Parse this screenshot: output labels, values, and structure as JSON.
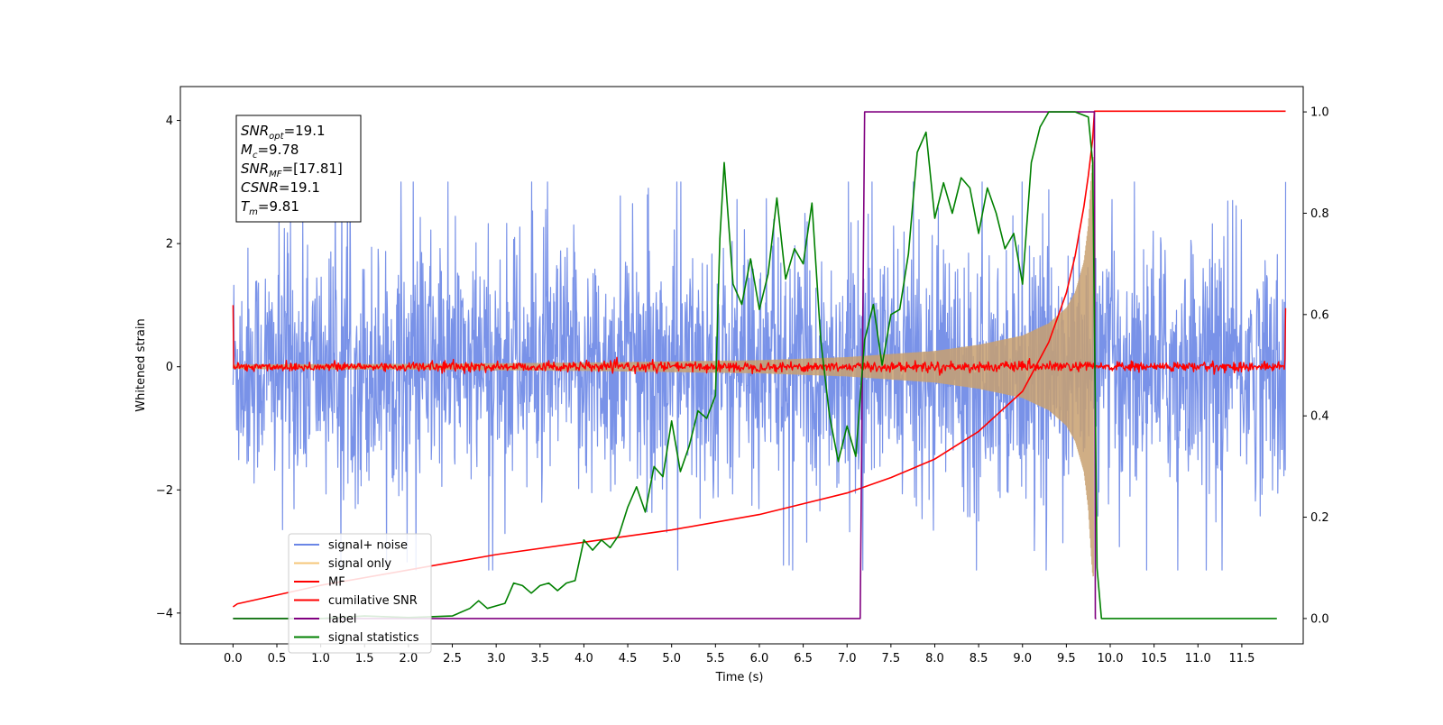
{
  "chart_data": {
    "type": "line",
    "xlabel": "Time (s)",
    "ylabel": "Whitened strain",
    "xlim": [
      -0.6,
      12.2
    ],
    "ylim": [
      -4.5,
      4.55
    ],
    "y2lim": [
      -0.05,
      1.05
    ],
    "x_ticks": [
      "0.0",
      "0.5",
      "1.0",
      "1.5",
      "2.0",
      "2.5",
      "3.0",
      "3.5",
      "4.0",
      "4.5",
      "5.0",
      "5.5",
      "6.0",
      "6.5",
      "7.0",
      "7.5",
      "8.0",
      "8.5",
      "9.0",
      "9.5",
      "10.0",
      "10.5",
      "11.0",
      "11.5"
    ],
    "y_ticks": [
      "4",
      "2",
      "0",
      "−2",
      "−4"
    ],
    "y2_ticks": [
      "1.0",
      "0.8",
      "0.6",
      "0.4",
      "0.2",
      "0.0"
    ],
    "annotation": {
      "snr_opt": {
        "sym": "SNR",
        "sub": "opt",
        "val": "=19.1"
      },
      "mc": {
        "sym": "M",
        "sub": "c",
        "val": "=9.78"
      },
      "snr_mf": {
        "sym": "SNR",
        "sub": "MF",
        "val": "=[17.81]"
      },
      "csnr": {
        "sym": "CSNR",
        "val": "=19.1"
      },
      "tm": {
        "sym": "T",
        "sub": "m",
        "val": "=9.81"
      }
    },
    "legend_position": "lower-left",
    "legend": [
      {
        "label": "signal+ noise",
        "color": "#6a86e6"
      },
      {
        "label": "signal only",
        "color": "#f5c77a"
      },
      {
        "label": "MF",
        "color": "#ff0000"
      },
      {
        "label": "cumilative SNR",
        "color": "#ff0000"
      },
      {
        "label": "label",
        "color": "#800080"
      },
      {
        "label": "signal statistics",
        "color": "#008000"
      }
    ],
    "series": [
      {
        "name": "signal+ noise",
        "axis": "left",
        "color": "#6a86e6",
        "pattern": "noise",
        "x_range": [
          0,
          12.0
        ],
        "amplitude_envelope": 3.0
      },
      {
        "name": "signal only",
        "axis": "left",
        "color": "#c8a070",
        "pattern": "chirp",
        "x_range": [
          0,
          9.81
        ],
        "envelope": [
          [
            0,
            0.03
          ],
          [
            2,
            0.04
          ],
          [
            4,
            0.06
          ],
          [
            6,
            0.1
          ],
          [
            7,
            0.15
          ],
          [
            8,
            0.25
          ],
          [
            8.5,
            0.35
          ],
          [
            9,
            0.5
          ],
          [
            9.3,
            0.7
          ],
          [
            9.5,
            0.95
          ],
          [
            9.6,
            1.2
          ],
          [
            9.7,
            1.7
          ],
          [
            9.75,
            2.3
          ],
          [
            9.78,
            3.0
          ],
          [
            9.8,
            3.4
          ]
        ]
      },
      {
        "name": "MF",
        "axis": "left",
        "color": "#ff0000",
        "pattern": "flat-noise",
        "x_range": [
          0,
          12.0
        ],
        "level": 0.0,
        "spikes": [
          [
            0.0,
            1.0
          ],
          [
            12.0,
            0.95
          ]
        ]
      },
      {
        "name": "cumilative SNR",
        "axis": "left",
        "color": "#ff0000",
        "points": [
          [
            0,
            -3.9
          ],
          [
            0.05,
            -3.85
          ],
          [
            1,
            -3.55
          ],
          [
            2,
            -3.3
          ],
          [
            3,
            -3.05
          ],
          [
            4,
            -2.85
          ],
          [
            5,
            -2.65
          ],
          [
            6,
            -2.4
          ],
          [
            7,
            -2.05
          ],
          [
            7.5,
            -1.8
          ],
          [
            8,
            -1.5
          ],
          [
            8.5,
            -1.05
          ],
          [
            9,
            -0.4
          ],
          [
            9.3,
            0.4
          ],
          [
            9.5,
            1.2
          ],
          [
            9.6,
            1.8
          ],
          [
            9.7,
            2.6
          ],
          [
            9.75,
            3.1
          ],
          [
            9.8,
            3.7
          ],
          [
            9.82,
            4.15
          ],
          [
            12.0,
            4.15
          ]
        ]
      },
      {
        "name": "label",
        "axis": "right",
        "color": "#800080",
        "points": [
          [
            0,
            0
          ],
          [
            7.15,
            0
          ],
          [
            7.2,
            1
          ],
          [
            9.82,
            1
          ],
          [
            9.83,
            0
          ],
          [
            9.84,
            0
          ]
        ]
      },
      {
        "name": "signal statistics",
        "axis": "right",
        "color": "#008000",
        "points": [
          [
            0,
            0
          ],
          [
            1.0,
            0
          ],
          [
            1.5,
            0.005
          ],
          [
            2,
            0.002
          ],
          [
            2.5,
            0.005
          ],
          [
            2.7,
            0.02
          ],
          [
            2.8,
            0.035
          ],
          [
            2.9,
            0.02
          ],
          [
            3.0,
            0.025
          ],
          [
            3.1,
            0.03
          ],
          [
            3.2,
            0.07
          ],
          [
            3.3,
            0.065
          ],
          [
            3.4,
            0.05
          ],
          [
            3.5,
            0.065
          ],
          [
            3.6,
            0.07
          ],
          [
            3.7,
            0.055
          ],
          [
            3.8,
            0.07
          ],
          [
            3.9,
            0.075
          ],
          [
            4.0,
            0.155
          ],
          [
            4.1,
            0.135
          ],
          [
            4.2,
            0.155
          ],
          [
            4.3,
            0.14
          ],
          [
            4.4,
            0.165
          ],
          [
            4.5,
            0.22
          ],
          [
            4.6,
            0.26
          ],
          [
            4.7,
            0.21
          ],
          [
            4.8,
            0.3
          ],
          [
            4.9,
            0.28
          ],
          [
            5.0,
            0.39
          ],
          [
            5.1,
            0.29
          ],
          [
            5.2,
            0.34
          ],
          [
            5.3,
            0.41
          ],
          [
            5.4,
            0.395
          ],
          [
            5.5,
            0.44
          ],
          [
            5.55,
            0.75
          ],
          [
            5.6,
            0.9
          ],
          [
            5.7,
            0.66
          ],
          [
            5.8,
            0.62
          ],
          [
            5.9,
            0.71
          ],
          [
            6.0,
            0.61
          ],
          [
            6.1,
            0.68
          ],
          [
            6.2,
            0.83
          ],
          [
            6.3,
            0.67
          ],
          [
            6.4,
            0.73
          ],
          [
            6.5,
            0.7
          ],
          [
            6.6,
            0.82
          ],
          [
            6.7,
            0.55
          ],
          [
            6.8,
            0.4
          ],
          [
            6.9,
            0.31
          ],
          [
            7.0,
            0.38
          ],
          [
            7.1,
            0.32
          ],
          [
            7.2,
            0.55
          ],
          [
            7.3,
            0.62
          ],
          [
            7.4,
            0.5
          ],
          [
            7.5,
            0.6
          ],
          [
            7.6,
            0.61
          ],
          [
            7.7,
            0.72
          ],
          [
            7.8,
            0.92
          ],
          [
            7.9,
            0.96
          ],
          [
            8.0,
            0.79
          ],
          [
            8.1,
            0.86
          ],
          [
            8.2,
            0.8
          ],
          [
            8.3,
            0.87
          ],
          [
            8.4,
            0.85
          ],
          [
            8.5,
            0.76
          ],
          [
            8.6,
            0.85
          ],
          [
            8.7,
            0.8
          ],
          [
            8.8,
            0.73
          ],
          [
            8.9,
            0.76
          ],
          [
            9.0,
            0.66
          ],
          [
            9.1,
            0.9
          ],
          [
            9.2,
            0.97
          ],
          [
            9.3,
            1.0
          ],
          [
            9.5,
            1.0
          ],
          [
            9.6,
            1.0
          ],
          [
            9.75,
            0.99
          ],
          [
            9.8,
            0.9
          ],
          [
            9.85,
            0.1
          ],
          [
            9.9,
            0.0
          ],
          [
            11.9,
            0.0
          ]
        ]
      }
    ]
  }
}
